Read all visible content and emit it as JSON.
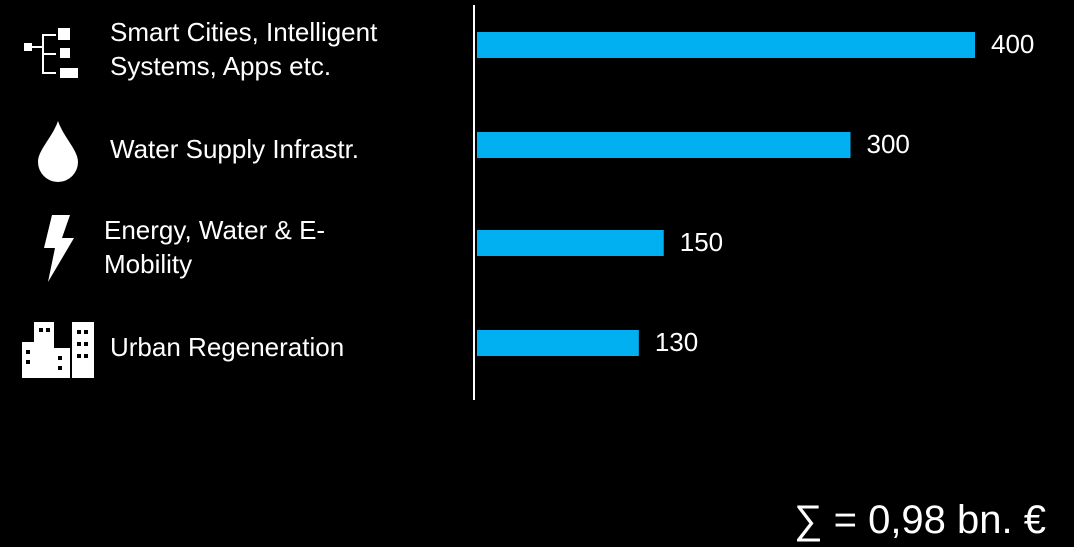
{
  "chart_data": {
    "type": "bar",
    "orientation": "horizontal",
    "categories": [
      "Smart Cities, Intelligent Systems, Apps etc.",
      "Water Supply Infrastr.",
      "Energy, Water & E-Mobility",
      "Urban Regeneration"
    ],
    "values": [
      400,
      300,
      150,
      130
    ],
    "color": "#00b0f0",
    "annotation": "∑ = 0,98 bn. €"
  }
}
